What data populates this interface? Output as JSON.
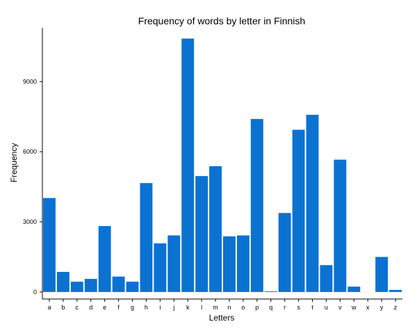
{
  "chart_data": {
    "type": "bar",
    "title": "Frequency of words by letter in Finnish",
    "xlabel": "Letters",
    "ylabel": "Frequency",
    "categories": [
      "a",
      "b",
      "c",
      "d",
      "e",
      "f",
      "g",
      "h",
      "i",
      "j",
      "k",
      "l",
      "m",
      "n",
      "o",
      "p",
      "q",
      "r",
      "s",
      "t",
      "u",
      "v",
      "w",
      "x",
      "y",
      "z"
    ],
    "values": [
      4020,
      860,
      440,
      560,
      2820,
      660,
      440,
      4660,
      2080,
      2420,
      10840,
      4960,
      5380,
      2380,
      2420,
      7400,
      30,
      3380,
      6940,
      7580,
      1150,
      5660,
      230,
      0,
      1500,
      90
    ],
    "y_ticks": [
      0,
      3000,
      6000,
      9000
    ],
    "ylim": [
      -300,
      11300
    ],
    "bar_color": "#0b72d2",
    "grid": false,
    "legend": "none"
  }
}
